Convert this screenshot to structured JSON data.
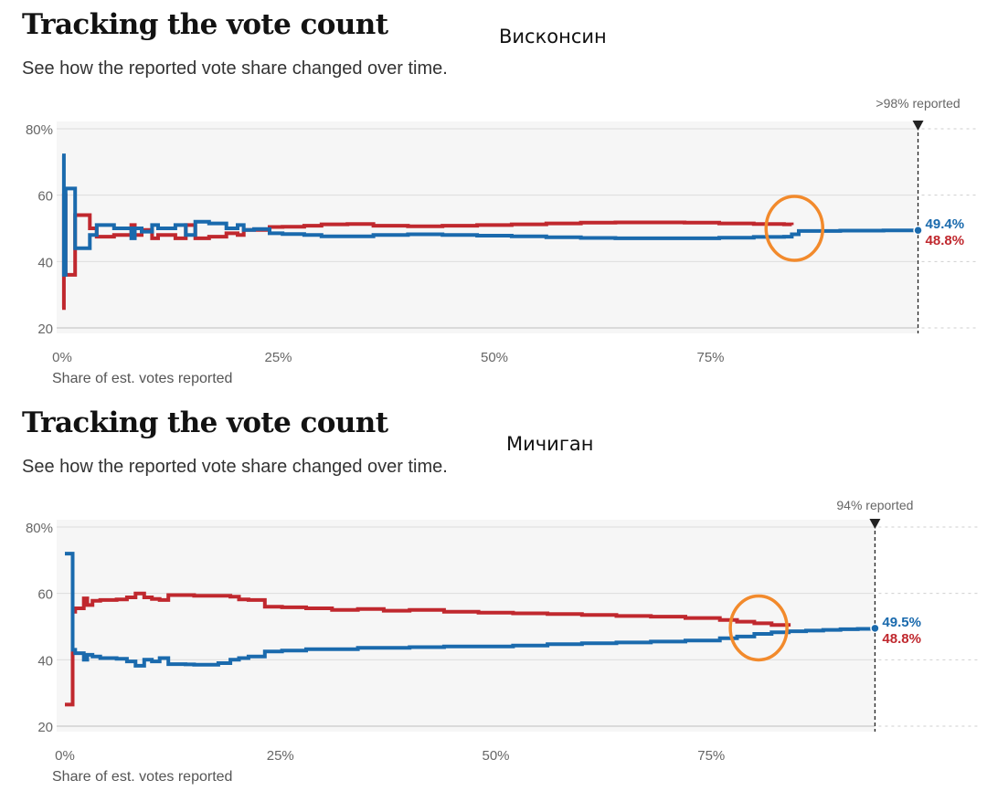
{
  "charts": [
    {
      "title": "Tracking the vote count",
      "subtitle": "See how the reported vote share changed over time.",
      "annotation": "Висконсин",
      "reported_label": ">98% reported",
      "xlabel": "Share of est. votes reported",
      "colors": {
        "blue": "#1a6aad",
        "red": "#c0282e",
        "highlight": "#f28a2c"
      },
      "chart_data": {
        "type": "line",
        "ylim": [
          20,
          80
        ],
        "xlim": [
          0,
          100
        ],
        "yticks": [
          {
            "v": 80,
            "label": "80%"
          },
          {
            "v": 60,
            "label": "60"
          },
          {
            "v": 40,
            "label": "40"
          },
          {
            "v": 20,
            "label": "20"
          }
        ],
        "xticks": [
          {
            "v": 0,
            "label": "0%"
          },
          {
            "v": 25,
            "label": "25%"
          },
          {
            "v": 50,
            "label": "50%"
          },
          {
            "v": 75,
            "label": "75%"
          }
        ],
        "reported_x": 99,
        "circle_x": 84.7,
        "circle_y": 50,
        "series": [
          {
            "color": "blue",
            "end_label": "49.4%",
            "x": [
              0,
              0.2,
              0.4,
              1.3,
              1.5,
              3.0,
              3.2,
              4.0,
              6,
              8,
              8.4,
              9.2,
              10.4,
              11.1,
              13.1,
              14.3,
              15.4,
              17.0,
              19.0,
              20.3,
              21.0,
              22.2,
              24.0,
              25.5,
              28.0,
              30.0,
              33.0,
              36,
              40,
              44,
              48,
              52,
              56,
              60,
              64,
              68,
              72,
              76,
              80,
              83.5,
              84.4,
              85.2,
              90,
              95,
              99
            ],
            "y": [
              72,
              36,
              62,
              62,
              44,
              44,
              48,
              51,
              50,
              47,
              50,
              49,
              51,
              50,
              51,
              48,
              52,
              51.5,
              50,
              51,
              49.5,
              49.8,
              48.5,
              48.3,
              48.0,
              47.6,
              47.6,
              48.0,
              48.2,
              48.0,
              47.8,
              47.6,
              47.3,
              47.1,
              47.0,
              47.0,
              47.0,
              47.2,
              47.4,
              47.5,
              48.2,
              49.2,
              49.3,
              49.4,
              49.4
            ]
          },
          {
            "color": "red",
            "end_label": "48.8%",
            "x": [
              0,
              0.2,
              0.4,
              1.3,
              1.5,
              3.0,
              3.2,
              4.0,
              6,
              8,
              8.4,
              9.2,
              10.4,
              11.1,
              13.1,
              14.3,
              15.4,
              17.0,
              19.0,
              20.3,
              21.0,
              22.2,
              24.0,
              25.5,
              28.0,
              30.0,
              33.0,
              36,
              40,
              44,
              48,
              52,
              56,
              60,
              64,
              68,
              72,
              76,
              80,
              83.5,
              84.4
            ],
            "y": [
              26,
              60,
              36,
              36,
              54,
              54,
              50,
              47.5,
              48,
              51,
              48,
              49.5,
              47,
              48,
              47,
              51,
              47,
              47.5,
              48.5,
              48,
              49.5,
              49.5,
              50.4,
              50.5,
              50.8,
              51.2,
              51.3,
              50.8,
              50.6,
              50.8,
              51.0,
              51.2,
              51.5,
              51.7,
              51.8,
              51.8,
              51.7,
              51.5,
              51.3,
              51.2,
              51.0
            ]
          }
        ]
      }
    },
    {
      "title": "Tracking the vote count",
      "subtitle": "See how the reported vote share changed over time.",
      "annotation": "Мичиган",
      "reported_label": "94% reported",
      "xlabel": "Share of est. votes reported",
      "colors": {
        "blue": "#1a6aad",
        "red": "#c0282e",
        "highlight": "#f28a2c"
      },
      "chart_data": {
        "type": "line",
        "ylim": [
          20,
          80
        ],
        "xlim": [
          0,
          100
        ],
        "yticks": [
          {
            "v": 80,
            "label": "80%"
          },
          {
            "v": 60,
            "label": "60"
          },
          {
            "v": 40,
            "label": "40"
          },
          {
            "v": 20,
            "label": "20"
          }
        ],
        "xticks": [
          {
            "v": 0,
            "label": "0%"
          },
          {
            "v": 25,
            "label": "25%"
          },
          {
            "v": 50,
            "label": "50%"
          },
          {
            "v": 75,
            "label": "75%"
          }
        ],
        "reported_x": 94,
        "circle_x": 80.5,
        "circle_y": 49.6,
        "series": [
          {
            "color": "blue",
            "end_label": "49.5%",
            "x": [
              0,
              0.9,
              1.2,
              2.2,
              2.6,
              3.2,
              4.1,
              6,
              7.2,
              8.2,
              9.2,
              10.1,
              11.0,
              12.0,
              14,
              15,
              16,
              17.8,
              19.2,
              20.2,
              21.3,
              23.2,
              25.2,
              28,
              31,
              34,
              37,
              40,
              44,
              48,
              52,
              56,
              60,
              64,
              68,
              72,
              76,
              78,
              80,
              82,
              84,
              86,
              88,
              90,
              92,
              94
            ],
            "y": [
              72,
              43,
              42,
              40,
              41.5,
              41,
              40.5,
              40.3,
              39.5,
              38.2,
              40.0,
              39.5,
              40.5,
              38.7,
              38.6,
              38.5,
              38.5,
              39.0,
              40.0,
              40.5,
              41.0,
              42.5,
              42.8,
              43.2,
              43.2,
              43.6,
              43.6,
              43.8,
              44.0,
              44.0,
              44.3,
              44.7,
              45.0,
              45.2,
              45.5,
              45.8,
              46.5,
              47.0,
              47.8,
              48.3,
              48.6,
              48.8,
              49.0,
              49.2,
              49.3,
              49.5
            ]
          },
          {
            "color": "red",
            "end_label": "48.8%",
            "x": [
              0,
              0.9,
              1.2,
              2.2,
              2.6,
              3.2,
              4.1,
              6,
              7.2,
              8.2,
              9.2,
              10.1,
              11.0,
              12.0,
              14,
              15,
              16,
              17.8,
              19.2,
              20.2,
              21.3,
              23.2,
              25.2,
              28,
              31,
              34,
              37,
              40,
              44,
              48,
              52,
              56,
              60,
              64,
              68,
              72,
              76,
              78,
              80,
              82,
              84
            ],
            "y": [
              26.5,
              54.5,
              55.5,
              58.5,
              56.5,
              57.8,
              58,
              58.2,
              58.8,
              60,
              58.8,
              58.3,
              58,
              59.5,
              59.5,
              59.3,
              59.3,
              59.3,
              59,
              58.2,
              58,
              56,
              55.8,
              55.5,
              55.0,
              55.3,
              54.8,
              55.0,
              54.5,
              54.2,
              54.0,
              53.8,
              53.5,
              53.2,
              53.0,
              52.6,
              52.0,
              51.5,
              51.0,
              50.5,
              50.0
            ]
          }
        ]
      }
    }
  ]
}
